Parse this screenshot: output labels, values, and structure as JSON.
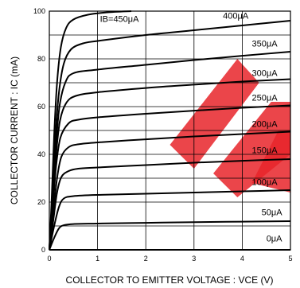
{
  "chart_data": {
    "type": "line",
    "xlabel": "COLLECTOR TO EMITTER VOLTAGE : VCE (V)",
    "ylabel": "COLLECTOR CURRENT : IC (mA)",
    "xlim": [
      0,
      5
    ],
    "ylim": [
      0,
      100
    ],
    "xticks": [
      "0",
      "1",
      "2",
      "3",
      "4",
      "5"
    ],
    "yticks": [
      "0",
      "20",
      "40",
      "60",
      "80",
      "100"
    ],
    "grid": true,
    "series": [
      {
        "name": "0μA",
        "points": [
          [
            0,
            0
          ],
          [
            5,
            0
          ]
        ]
      },
      {
        "name": "50μA",
        "points": [
          [
            0,
            0
          ],
          [
            0.1,
            5
          ],
          [
            0.2,
            9
          ],
          [
            0.3,
            10.3
          ],
          [
            0.5,
            10.8
          ],
          [
            1,
            11
          ],
          [
            2,
            11.3
          ],
          [
            3,
            11.6
          ],
          [
            4,
            11.8
          ],
          [
            5,
            12
          ]
        ]
      },
      {
        "name": "100μA",
        "points": [
          [
            0,
            0
          ],
          [
            0.1,
            10
          ],
          [
            0.2,
            18
          ],
          [
            0.3,
            21.5
          ],
          [
            0.5,
            22.5
          ],
          [
            1,
            23
          ],
          [
            2,
            23.5
          ],
          [
            3,
            24
          ],
          [
            4,
            24.5
          ],
          [
            5,
            25
          ]
        ]
      },
      {
        "name": "150μA",
        "points": [
          [
            0,
            0
          ],
          [
            0.08,
            12
          ],
          [
            0.16,
            24
          ],
          [
            0.25,
            30.5
          ],
          [
            0.4,
            33
          ],
          [
            0.6,
            34
          ],
          [
            1,
            34.5
          ],
          [
            2,
            35.5
          ],
          [
            3,
            36.5
          ],
          [
            4,
            37.3
          ],
          [
            5,
            38
          ]
        ]
      },
      {
        "name": "200μA",
        "points": [
          [
            0,
            0
          ],
          [
            0.08,
            15
          ],
          [
            0.16,
            30
          ],
          [
            0.25,
            39
          ],
          [
            0.4,
            43
          ],
          [
            0.6,
            44.2
          ],
          [
            1,
            45
          ],
          [
            2,
            46.3
          ],
          [
            3,
            47.5
          ],
          [
            4,
            48.5
          ],
          [
            5,
            49.5
          ]
        ]
      },
      {
        "name": "250μA",
        "points": [
          [
            0,
            0
          ],
          [
            0.07,
            17
          ],
          [
            0.14,
            35
          ],
          [
            0.23,
            47
          ],
          [
            0.4,
            53
          ],
          [
            0.6,
            54.5
          ],
          [
            1,
            55.5
          ],
          [
            2,
            57
          ],
          [
            3,
            58.3
          ],
          [
            4,
            59.5
          ],
          [
            5,
            60.5
          ]
        ]
      },
      {
        "name": "300μA",
        "points": [
          [
            0,
            0
          ],
          [
            0.07,
            20
          ],
          [
            0.14,
            40
          ],
          [
            0.22,
            54
          ],
          [
            0.35,
            61.5
          ],
          [
            0.55,
            64.5
          ],
          [
            1,
            66
          ],
          [
            2,
            67.8
          ],
          [
            3,
            69.2
          ],
          [
            4,
            70.5
          ],
          [
            5,
            71.5
          ]
        ]
      },
      {
        "name": "350μA",
        "points": [
          [
            0,
            0
          ],
          [
            0.06,
            20
          ],
          [
            0.13,
            42
          ],
          [
            0.21,
            60
          ],
          [
            0.33,
            70
          ],
          [
            0.5,
            74
          ],
          [
            1,
            75.5
          ],
          [
            2,
            77.5
          ],
          [
            3,
            79.5
          ],
          [
            4,
            81.3
          ],
          [
            5,
            83
          ]
        ]
      },
      {
        "name": "400μA",
        "points": [
          [
            0,
            0
          ],
          [
            0.06,
            22
          ],
          [
            0.12,
            46
          ],
          [
            0.2,
            66
          ],
          [
            0.3,
            78
          ],
          [
            0.45,
            84
          ],
          [
            0.7,
            86.5
          ],
          [
            1,
            87.5
          ],
          [
            2,
            90
          ],
          [
            3,
            92
          ],
          [
            4,
            94
          ],
          [
            5,
            96
          ]
        ]
      },
      {
        "name": "IB=450μA",
        "points": [
          [
            0,
            0
          ],
          [
            0.05,
            22
          ],
          [
            0.1,
            48
          ],
          [
            0.16,
            70
          ],
          [
            0.24,
            85
          ],
          [
            0.35,
            93
          ],
          [
            0.5,
            96.5
          ],
          [
            0.8,
            98.5
          ],
          [
            1.2,
            99.5
          ],
          [
            1.7,
            100
          ]
        ]
      }
    ],
    "labels": [
      {
        "text": "IB=450μA",
        "x": 1.05,
        "y": 95.5
      },
      {
        "text": "400μA",
        "x": 3.6,
        "y": 96.8
      },
      {
        "text": "350μA",
        "x": 4.2,
        "y": 85.2
      },
      {
        "text": "300μA",
        "x": 4.2,
        "y": 72.8
      },
      {
        "text": "250μA",
        "x": 4.2,
        "y": 62.5
      },
      {
        "text": "200μA",
        "x": 4.2,
        "y": 51.5
      },
      {
        "text": "150μA",
        "x": 4.2,
        "y": 40.5
      },
      {
        "text": "100μA",
        "x": 4.2,
        "y": 27.2
      },
      {
        "text": "50μA",
        "x": 4.4,
        "y": 14.5
      },
      {
        "text": "0μA",
        "x": 4.5,
        "y": 3.5
      }
    ],
    "watermark_color": "#e8242a"
  }
}
